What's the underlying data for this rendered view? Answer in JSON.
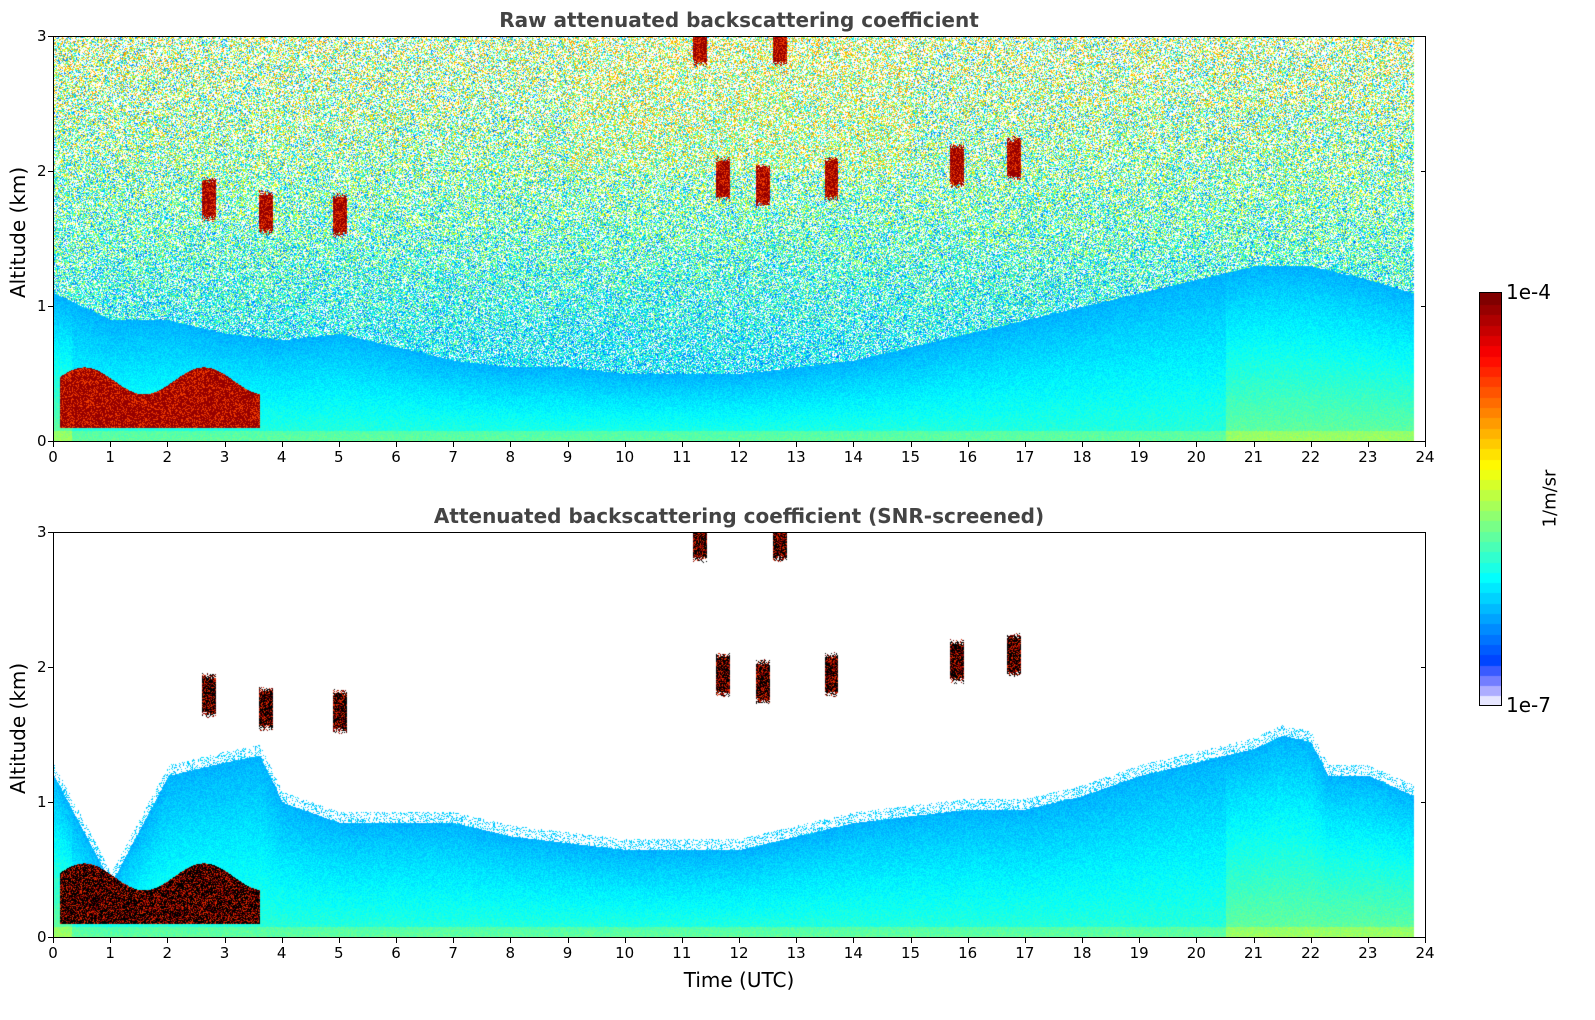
{
  "chart_data": [
    {
      "type": "heatmap",
      "title": "Raw attenuated backscattering coefficient",
      "ylabel": "Altitude (km)",
      "xlabel": "",
      "xlim": [
        0,
        24
      ],
      "ylim": [
        0,
        3
      ],
      "x_ticks": [
        "0",
        "1",
        "2",
        "3",
        "4",
        "5",
        "6",
        "7",
        "8",
        "9",
        "10",
        "11",
        "12",
        "13",
        "14",
        "15",
        "16",
        "17",
        "18",
        "19",
        "20",
        "21",
        "22",
        "23",
        "24"
      ],
      "y_ticks": [
        "0",
        "1",
        "2",
        "3"
      ],
      "data_end_time": 23.8,
      "features": {
        "low_cloud_layer": {
          "time_range": [
            0.1,
            3.6
          ],
          "altitude_km": [
            0.1,
            0.45
          ]
        },
        "surface_aerosol_layer_top_km": [
          [
            0,
            1.1
          ],
          [
            1,
            0.9
          ],
          [
            2,
            0.9
          ],
          [
            3,
            0.8
          ],
          [
            4,
            0.75
          ],
          [
            5,
            0.8
          ],
          [
            6,
            0.7
          ],
          [
            7,
            0.6
          ],
          [
            8,
            0.55
          ],
          [
            9,
            0.55
          ],
          [
            10,
            0.5
          ],
          [
            11,
            0.5
          ],
          [
            12,
            0.5
          ],
          [
            13,
            0.55
          ],
          [
            14,
            0.6
          ],
          [
            15,
            0.7
          ],
          [
            16,
            0.8
          ],
          [
            17,
            0.9
          ],
          [
            18,
            1.0
          ],
          [
            19,
            1.1
          ],
          [
            20,
            1.2
          ],
          [
            21,
            1.3
          ],
          [
            22,
            1.3
          ],
          [
            23,
            1.2
          ],
          [
            23.8,
            1.1
          ]
        ],
        "cloud_patches": [
          {
            "time": 11.3,
            "altitude_km": 2.95
          },
          {
            "time": 12.7,
            "altitude_km": 2.95
          },
          {
            "time": 11.7,
            "altitude_km": 1.95
          },
          {
            "time": 12.4,
            "altitude_km": 1.9
          },
          {
            "time": 13.6,
            "altitude_km": 1.95
          },
          {
            "time": 15.8,
            "altitude_km": 2.05
          },
          {
            "time": 16.8,
            "altitude_km": 2.1
          },
          {
            "time": 2.7,
            "altitude_km": 1.8
          },
          {
            "time": 3.7,
            "altitude_km": 1.7
          },
          {
            "time": 5.0,
            "altitude_km": 1.68
          }
        ]
      }
    },
    {
      "type": "heatmap",
      "title": "Attenuated backscattering coefficient (SNR-screened)",
      "ylabel": "Altitude (km)",
      "xlabel": "Time (UTC)",
      "xlim": [
        0,
        24
      ],
      "ylim": [
        0,
        3
      ],
      "x_ticks": [
        "0",
        "1",
        "2",
        "3",
        "4",
        "5",
        "6",
        "7",
        "8",
        "9",
        "10",
        "11",
        "12",
        "13",
        "14",
        "15",
        "16",
        "17",
        "18",
        "19",
        "20",
        "21",
        "22",
        "23",
        "24"
      ],
      "y_ticks": [
        "0",
        "1",
        "2",
        "3"
      ],
      "data_end_time": 23.8,
      "screened_layer_top_km": [
        [
          0,
          1.2
        ],
        [
          1,
          0.4
        ],
        [
          2,
          1.2
        ],
        [
          3,
          1.3
        ],
        [
          3.6,
          1.35
        ],
        [
          4,
          1.0
        ],
        [
          5,
          0.85
        ],
        [
          6,
          0.85
        ],
        [
          7,
          0.85
        ],
        [
          8,
          0.75
        ],
        [
          9,
          0.7
        ],
        [
          10,
          0.65
        ],
        [
          11,
          0.65
        ],
        [
          12,
          0.65
        ],
        [
          13,
          0.75
        ],
        [
          14,
          0.85
        ],
        [
          15,
          0.9
        ],
        [
          16,
          0.95
        ],
        [
          17,
          0.95
        ],
        [
          18,
          1.05
        ],
        [
          19,
          1.2
        ],
        [
          20,
          1.3
        ],
        [
          21,
          1.4
        ],
        [
          21.5,
          1.5
        ],
        [
          22,
          1.45
        ],
        [
          22.3,
          1.2
        ],
        [
          23,
          1.2
        ],
        [
          23.8,
          1.05
        ]
      ]
    }
  ],
  "colorbar": {
    "max_label": "1e-4",
    "min_label": "1e-7",
    "unit": "1/m/sr",
    "colormap": "jet"
  }
}
